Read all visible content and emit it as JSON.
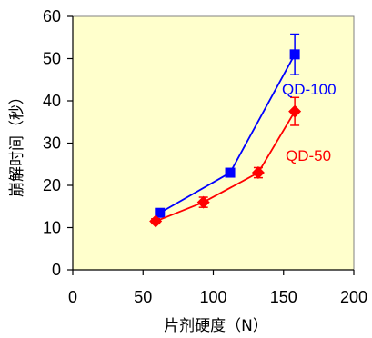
{
  "chart_data": {
    "type": "line",
    "title": "",
    "xlabel": "片剂硬度（N）",
    "ylabel": "崩解时间（秒）",
    "xlim": [
      0,
      200
    ],
    "ylim": [
      0,
      60
    ],
    "xticks": [
      0,
      50,
      100,
      150,
      200
    ],
    "yticks": [
      0,
      10,
      20,
      30,
      40,
      50,
      60
    ],
    "grid": false,
    "plot_background": "#ffffcc",
    "series": [
      {
        "name": "QD-100",
        "color": "#0000ff",
        "marker": "square",
        "points": [
          {
            "x": 62,
            "y": 13.5,
            "err": 0.8
          },
          {
            "x": 112,
            "y": 23,
            "err": 0.8
          },
          {
            "x": 158,
            "y": 51,
            "err": 4.8
          }
        ]
      },
      {
        "name": "QD-50",
        "color": "#ff0000",
        "marker": "diamond",
        "points": [
          {
            "x": 59,
            "y": 11.5,
            "err": 0.6
          },
          {
            "x": 93,
            "y": 16,
            "err": 1.2
          },
          {
            "x": 132,
            "y": 23,
            "err": 1.2
          },
          {
            "x": 158,
            "y": 37.5,
            "err": 3.3
          }
        ]
      }
    ]
  }
}
